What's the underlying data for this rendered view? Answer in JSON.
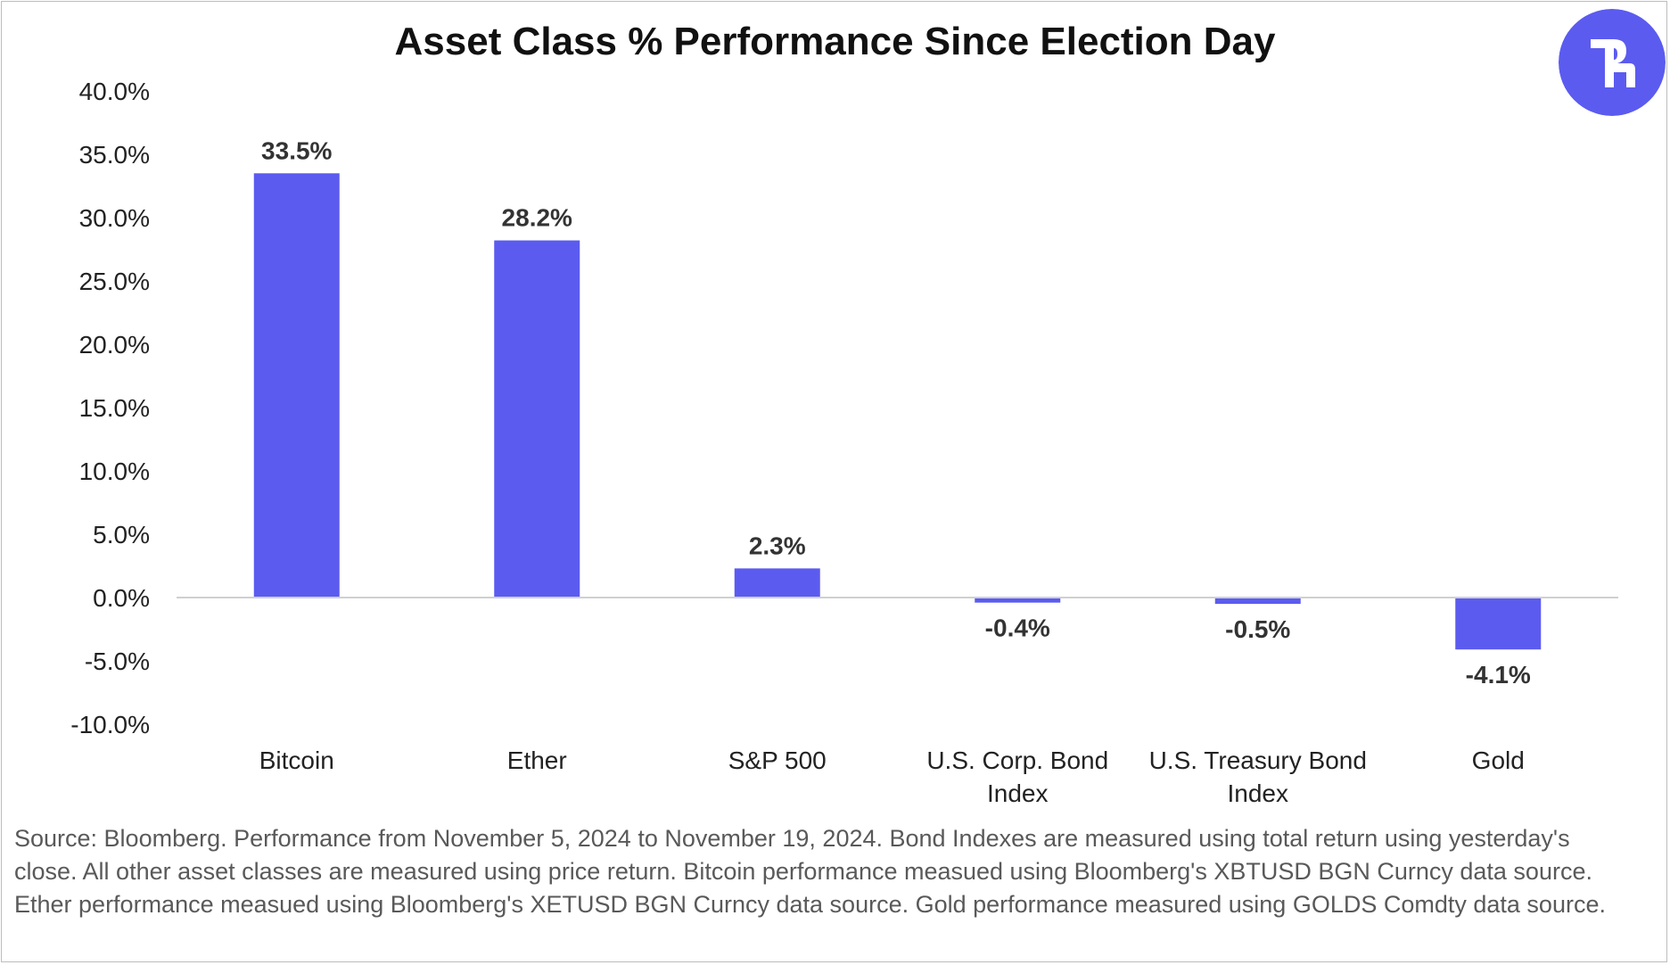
{
  "chart_data": {
    "type": "bar",
    "title": "Asset Class % Performance Since Election Day",
    "categories": [
      [
        "Bitcoin"
      ],
      [
        "Ether"
      ],
      [
        "S&P 500"
      ],
      [
        "U.S. Corp. Bond",
        "Index"
      ],
      [
        "U.S. Treasury Bond",
        "Index"
      ],
      [
        "Gold"
      ]
    ],
    "values": [
      33.5,
      28.2,
      2.3,
      -0.4,
      -0.5,
      -4.1
    ],
    "data_labels": [
      "33.5%",
      "28.2%",
      "2.3%",
      "-0.4%",
      "-0.5%",
      "-4.1%"
    ],
    "ylim": [
      -10,
      40
    ],
    "yticks": [
      40,
      35,
      30,
      25,
      20,
      15,
      10,
      5,
      0,
      -5,
      -10
    ],
    "ytick_labels": [
      "40.0%",
      "35.0%",
      "30.0%",
      "25.0%",
      "20.0%",
      "15.0%",
      "10.0%",
      "5.0%",
      "0.0%",
      "-5.0%",
      "-10.0%"
    ],
    "xlabel": "",
    "ylabel": "",
    "grid": false,
    "bar_color": "#5b5bf0"
  },
  "logo": {
    "icon": "brand-r-logo-icon",
    "color": "#5b5bf0"
  },
  "source_text": "Source: Bloomberg. Performance from November 5, 2024 to November 19, 2024.  Bond Indexes are measured using total return using yesterday's close. All other asset classes are measured using price return. Bitcoin performance measued using Bloomberg's XBTUSD BGN Curncy data source. Ether performance measued using Bloomberg's XETUSD BGN Curncy data source. Gold performance measured using GOLDS Comdty data source."
}
